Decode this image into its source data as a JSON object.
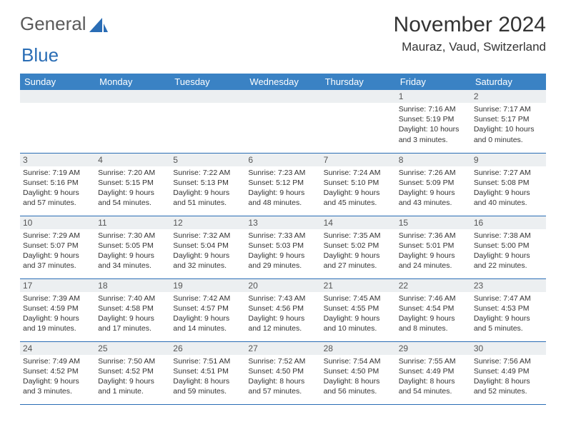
{
  "logo": {
    "text1": "General",
    "text2": "Blue"
  },
  "title": "November 2024",
  "location": "Mauraz, Vaud, Switzerland",
  "colors": {
    "header_bg": "#3a82c4",
    "header_fg": "#ffffff",
    "border": "#2a6db5",
    "daynum_bg": "#eceff1"
  },
  "week_days": [
    "Sunday",
    "Monday",
    "Tuesday",
    "Wednesday",
    "Thursday",
    "Friday",
    "Saturday"
  ],
  "weeks": [
    [
      {
        "n": "",
        "sr": "",
        "ss": "",
        "dl": ""
      },
      {
        "n": "",
        "sr": "",
        "ss": "",
        "dl": ""
      },
      {
        "n": "",
        "sr": "",
        "ss": "",
        "dl": ""
      },
      {
        "n": "",
        "sr": "",
        "ss": "",
        "dl": ""
      },
      {
        "n": "",
        "sr": "",
        "ss": "",
        "dl": ""
      },
      {
        "n": "1",
        "sr": "Sunrise: 7:16 AM",
        "ss": "Sunset: 5:19 PM",
        "dl": "Daylight: 10 hours and 3 minutes."
      },
      {
        "n": "2",
        "sr": "Sunrise: 7:17 AM",
        "ss": "Sunset: 5:17 PM",
        "dl": "Daylight: 10 hours and 0 minutes."
      }
    ],
    [
      {
        "n": "3",
        "sr": "Sunrise: 7:19 AM",
        "ss": "Sunset: 5:16 PM",
        "dl": "Daylight: 9 hours and 57 minutes."
      },
      {
        "n": "4",
        "sr": "Sunrise: 7:20 AM",
        "ss": "Sunset: 5:15 PM",
        "dl": "Daylight: 9 hours and 54 minutes."
      },
      {
        "n": "5",
        "sr": "Sunrise: 7:22 AM",
        "ss": "Sunset: 5:13 PM",
        "dl": "Daylight: 9 hours and 51 minutes."
      },
      {
        "n": "6",
        "sr": "Sunrise: 7:23 AM",
        "ss": "Sunset: 5:12 PM",
        "dl": "Daylight: 9 hours and 48 minutes."
      },
      {
        "n": "7",
        "sr": "Sunrise: 7:24 AM",
        "ss": "Sunset: 5:10 PM",
        "dl": "Daylight: 9 hours and 45 minutes."
      },
      {
        "n": "8",
        "sr": "Sunrise: 7:26 AM",
        "ss": "Sunset: 5:09 PM",
        "dl": "Daylight: 9 hours and 43 minutes."
      },
      {
        "n": "9",
        "sr": "Sunrise: 7:27 AM",
        "ss": "Sunset: 5:08 PM",
        "dl": "Daylight: 9 hours and 40 minutes."
      }
    ],
    [
      {
        "n": "10",
        "sr": "Sunrise: 7:29 AM",
        "ss": "Sunset: 5:07 PM",
        "dl": "Daylight: 9 hours and 37 minutes."
      },
      {
        "n": "11",
        "sr": "Sunrise: 7:30 AM",
        "ss": "Sunset: 5:05 PM",
        "dl": "Daylight: 9 hours and 34 minutes."
      },
      {
        "n": "12",
        "sr": "Sunrise: 7:32 AM",
        "ss": "Sunset: 5:04 PM",
        "dl": "Daylight: 9 hours and 32 minutes."
      },
      {
        "n": "13",
        "sr": "Sunrise: 7:33 AM",
        "ss": "Sunset: 5:03 PM",
        "dl": "Daylight: 9 hours and 29 minutes."
      },
      {
        "n": "14",
        "sr": "Sunrise: 7:35 AM",
        "ss": "Sunset: 5:02 PM",
        "dl": "Daylight: 9 hours and 27 minutes."
      },
      {
        "n": "15",
        "sr": "Sunrise: 7:36 AM",
        "ss": "Sunset: 5:01 PM",
        "dl": "Daylight: 9 hours and 24 minutes."
      },
      {
        "n": "16",
        "sr": "Sunrise: 7:38 AM",
        "ss": "Sunset: 5:00 PM",
        "dl": "Daylight: 9 hours and 22 minutes."
      }
    ],
    [
      {
        "n": "17",
        "sr": "Sunrise: 7:39 AM",
        "ss": "Sunset: 4:59 PM",
        "dl": "Daylight: 9 hours and 19 minutes."
      },
      {
        "n": "18",
        "sr": "Sunrise: 7:40 AM",
        "ss": "Sunset: 4:58 PM",
        "dl": "Daylight: 9 hours and 17 minutes."
      },
      {
        "n": "19",
        "sr": "Sunrise: 7:42 AM",
        "ss": "Sunset: 4:57 PM",
        "dl": "Daylight: 9 hours and 14 minutes."
      },
      {
        "n": "20",
        "sr": "Sunrise: 7:43 AM",
        "ss": "Sunset: 4:56 PM",
        "dl": "Daylight: 9 hours and 12 minutes."
      },
      {
        "n": "21",
        "sr": "Sunrise: 7:45 AM",
        "ss": "Sunset: 4:55 PM",
        "dl": "Daylight: 9 hours and 10 minutes."
      },
      {
        "n": "22",
        "sr": "Sunrise: 7:46 AM",
        "ss": "Sunset: 4:54 PM",
        "dl": "Daylight: 9 hours and 8 minutes."
      },
      {
        "n": "23",
        "sr": "Sunrise: 7:47 AM",
        "ss": "Sunset: 4:53 PM",
        "dl": "Daylight: 9 hours and 5 minutes."
      }
    ],
    [
      {
        "n": "24",
        "sr": "Sunrise: 7:49 AM",
        "ss": "Sunset: 4:52 PM",
        "dl": "Daylight: 9 hours and 3 minutes."
      },
      {
        "n": "25",
        "sr": "Sunrise: 7:50 AM",
        "ss": "Sunset: 4:52 PM",
        "dl": "Daylight: 9 hours and 1 minute."
      },
      {
        "n": "26",
        "sr": "Sunrise: 7:51 AM",
        "ss": "Sunset: 4:51 PM",
        "dl": "Daylight: 8 hours and 59 minutes."
      },
      {
        "n": "27",
        "sr": "Sunrise: 7:52 AM",
        "ss": "Sunset: 4:50 PM",
        "dl": "Daylight: 8 hours and 57 minutes."
      },
      {
        "n": "28",
        "sr": "Sunrise: 7:54 AM",
        "ss": "Sunset: 4:50 PM",
        "dl": "Daylight: 8 hours and 56 minutes."
      },
      {
        "n": "29",
        "sr": "Sunrise: 7:55 AM",
        "ss": "Sunset: 4:49 PM",
        "dl": "Daylight: 8 hours and 54 minutes."
      },
      {
        "n": "30",
        "sr": "Sunrise: 7:56 AM",
        "ss": "Sunset: 4:49 PM",
        "dl": "Daylight: 8 hours and 52 minutes."
      }
    ]
  ]
}
